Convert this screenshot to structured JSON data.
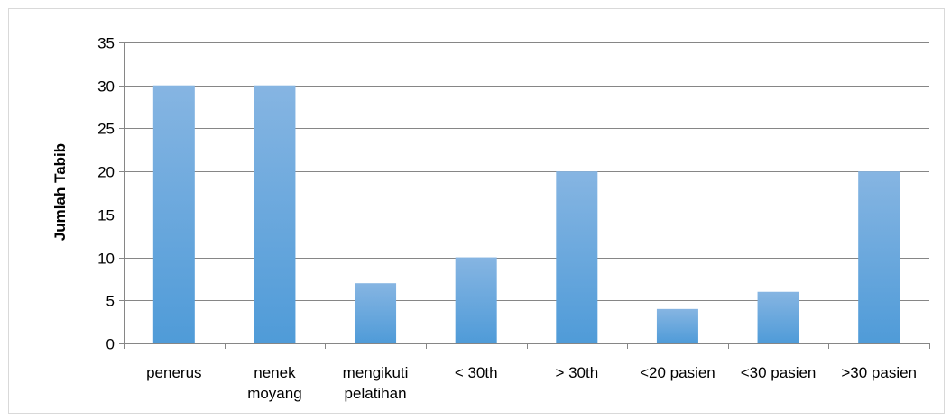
{
  "chart_data": {
    "type": "bar",
    "title": "",
    "xlabel": "",
    "ylabel": "Jumlah Tabib",
    "categories": [
      [
        "penerus"
      ],
      [
        "nenek",
        "moyang"
      ],
      [
        "mengikuti",
        "pelatihan"
      ],
      [
        "< 30th"
      ],
      [
        "> 30th"
      ],
      [
        "<20 pasien"
      ],
      [
        "<30 pasien"
      ],
      [
        ">30 pasien"
      ]
    ],
    "values": [
      30,
      30,
      7,
      10,
      20,
      4,
      6,
      20
    ],
    "ylim": [
      0,
      35
    ],
    "yticks": [
      0,
      5,
      10,
      15,
      20,
      25,
      30,
      35
    ],
    "grid": true,
    "legend": "none",
    "colors": {
      "bar_top": "#86b5e2",
      "bar_bottom": "#4f9bd8",
      "grid": "#868686",
      "axis": "#868686"
    }
  }
}
